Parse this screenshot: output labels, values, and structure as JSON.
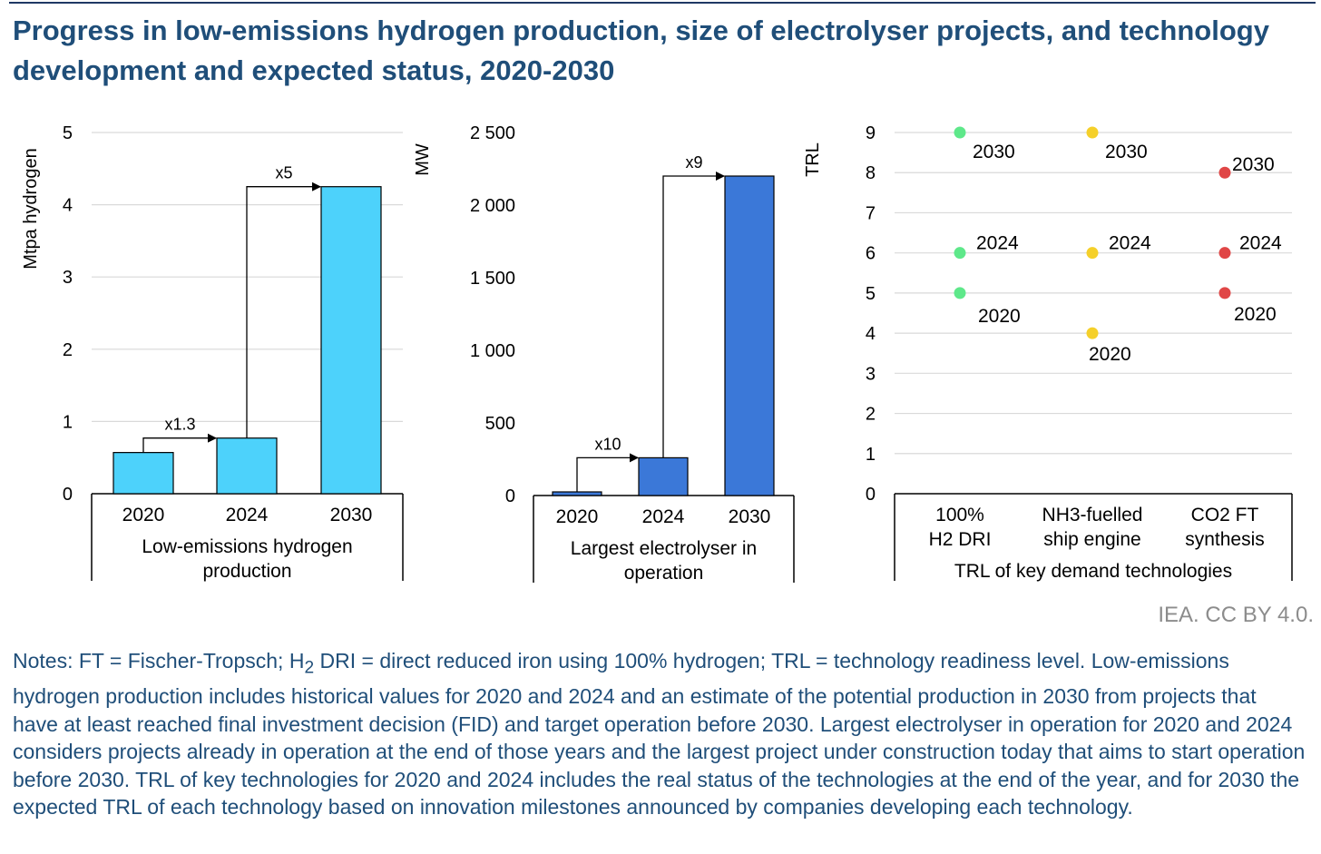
{
  "title": "Progress in low-emissions hydrogen production, size of electrolyser projects, and technology development and expected status, 2020-2030",
  "colors": {
    "title": "#1f4e79",
    "bar_light": "#4dd2fb",
    "bar_dark": "#3b78d8",
    "trl_green": "#5ee88a",
    "trl_yellow": "#f5d02a",
    "trl_red": "#e04646",
    "grid": "#d9d9d9"
  },
  "chart_data": [
    {
      "type": "bar",
      "title": "Low-emissions hydrogen production",
      "xlabel": "Low-emissions hydrogen production",
      "ylabel": "Mtpa hydrogen",
      "categories": [
        "2020",
        "2024",
        "2030"
      ],
      "values": [
        0.57,
        0.77,
        4.25
      ],
      "ylim": [
        0,
        5
      ],
      "yticks": [
        "0",
        "1",
        "2",
        "3",
        "4",
        "5"
      ],
      "grid": true,
      "annotations": [
        {
          "text": "x1.3",
          "from": "2020",
          "to": "2024"
        },
        {
          "text": "x5",
          "from": "2024",
          "to": "2030"
        }
      ]
    },
    {
      "type": "bar",
      "title": "Largest electrolyser in operation",
      "xlabel": "Largest electrolyser in operation",
      "ylabel": "MW",
      "categories": [
        "2020",
        "2024",
        "2030"
      ],
      "values": [
        25,
        260,
        2200
      ],
      "ylim": [
        0,
        2500
      ],
      "yticks": [
        "0",
        "500",
        "1 000",
        "1 500",
        "2 000",
        "2 500"
      ],
      "grid": false,
      "annotations": [
        {
          "text": "x10",
          "from": "2020",
          "to": "2024"
        },
        {
          "text": "x9",
          "from": "2024",
          "to": "2030"
        }
      ]
    },
    {
      "type": "scatter",
      "title": "TRL of key demand technologies",
      "xlabel": "TRL of key demand technologies",
      "ylabel": "TRL",
      "categories": [
        "100% H2 DRI",
        "NH3-fuelled ship engine",
        "CO2 FT synthesis"
      ],
      "category_lines": [
        [
          "100%",
          "H2 DRI"
        ],
        [
          "NH3-fuelled",
          "ship engine"
        ],
        [
          "CO2 FT",
          "synthesis"
        ]
      ],
      "ylim": [
        0,
        9
      ],
      "yticks": [
        "0",
        "1",
        "2",
        "3",
        "4",
        "5",
        "6",
        "7",
        "8",
        "9"
      ],
      "grid": true,
      "series": [
        {
          "name": "100% H2 DRI",
          "color": "trl_green",
          "points": [
            {
              "year": "2020",
              "trl": 5
            },
            {
              "year": "2024",
              "trl": 6
            },
            {
              "year": "2030",
              "trl": 9
            }
          ]
        },
        {
          "name": "NH3-fuelled ship engine",
          "color": "trl_yellow",
          "points": [
            {
              "year": "2020",
              "trl": 4
            },
            {
              "year": "2024",
              "trl": 6
            },
            {
              "year": "2030",
              "trl": 9
            }
          ]
        },
        {
          "name": "CO2 FT synthesis",
          "color": "trl_red",
          "points": [
            {
              "year": "2020",
              "trl": 5
            },
            {
              "year": "2024",
              "trl": 6
            },
            {
              "year": "2030",
              "trl": 8
            }
          ]
        }
      ]
    }
  ],
  "credit": "IEA. CC BY 4.0.",
  "notes": {
    "part1": "Notes: FT = Fischer-Tropsch; H",
    "sub": "2",
    "part2": " DRI = direct reduced iron using 100% hydrogen; TRL = technology readiness level. Low-emissions hydrogen production includes historical values for 2020 and 2024 and an estimate of the potential production in 2030 from projects that have at least reached final investment decision (FID) and target operation before 2030. Largest electrolyser in operation for 2020 and 2024 considers projects already in operation at the end of those years and the largest project under construction today that aims to start operation before 2030. TRL of key technologies for 2020 and 2024 includes the real status of the technologies at the end of the year, and for 2030 the expected TRL of each technology based on innovation milestones announced by companies developing each technology."
  }
}
